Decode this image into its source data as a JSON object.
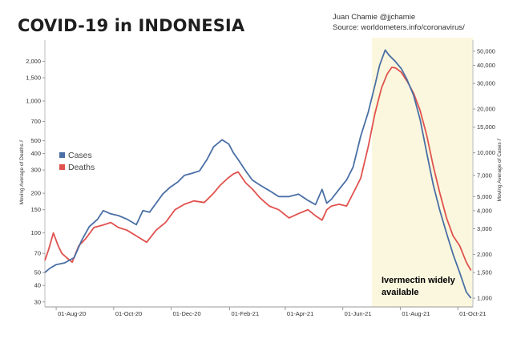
{
  "header": {
    "title": "COVID-19 in INDONESIA",
    "author": "Juan Chamie @jjchamie",
    "source": "Source: worldometers.info/coronavirus/"
  },
  "chart_data": {
    "type": "line",
    "title": "COVID-19 in INDONESIA",
    "ylabel_left": "Moving Average of Deaths",
    "ylabel_right": "Moving Average of Cases",
    "y_left_scale": "log",
    "y_right_scale": "log",
    "y_left_ticks": [
      30,
      40,
      50,
      70,
      100,
      150,
      200,
      300,
      400,
      500,
      700,
      1000,
      1500,
      2000
    ],
    "y_left_tick_labels": [
      "30",
      "40",
      "50",
      "70",
      "100",
      "150",
      "200",
      "300",
      "400",
      "500",
      "700",
      "1,000",
      "1,500",
      "2,000"
    ],
    "y_right_ticks": [
      1000,
      1500,
      2000,
      3000,
      4000,
      5000,
      7000,
      10000,
      15000,
      20000,
      30000,
      40000,
      50000
    ],
    "y_right_tick_labels": [
      "1,000",
      "1,500",
      "2,000",
      "3,000",
      "4,000",
      "5,000",
      "7,000",
      "10,000",
      "15,000",
      "20,000",
      "30,000",
      "40,000",
      "50,000"
    ],
    "x_tick_labels": [
      "01-Aug-20",
      "01-Oct-20",
      "01-Dec-20",
      "01-Feb-21",
      "01-Apr-21",
      "01-Jun-21",
      "01-Aug-21",
      "01-Oct-21"
    ],
    "x_tick_dates": [
      "2020-08-01",
      "2020-10-01",
      "2020-12-01",
      "2021-02-01",
      "2021-04-01",
      "2021-06-01",
      "2021-08-01",
      "2021-10-01"
    ],
    "x_range": [
      "2020-07-20",
      "2021-10-17"
    ],
    "legend": [
      "Cases",
      "Deaths"
    ],
    "legend_position": "left",
    "colors": {
      "cases": "#4a6fa5",
      "deaths": "#e0524e",
      "highlight": "#fbf7de"
    },
    "highlight": {
      "start": "2021-07-02",
      "end": "2021-10-17",
      "label_line1": "Ivermectin widely",
      "label_line2": "available"
    },
    "series": [
      {
        "name": "Cases",
        "axis": "right",
        "x": [
          "2020-07-20",
          "2020-07-25",
          "2020-08-01",
          "2020-08-10",
          "2020-08-20",
          "2020-08-28",
          "2020-09-05",
          "2020-09-14",
          "2020-09-20",
          "2020-09-28",
          "2020-10-06",
          "2020-10-15",
          "2020-10-25",
          "2020-11-01",
          "2020-11-08",
          "2020-11-15",
          "2020-11-22",
          "2020-11-30",
          "2020-12-08",
          "2020-12-15",
          "2020-12-22",
          "2020-12-31",
          "2021-01-08",
          "2021-01-15",
          "2021-01-24",
          "2021-01-31",
          "2021-02-05",
          "2021-02-10",
          "2021-02-18",
          "2021-02-25",
          "2021-03-05",
          "2021-03-15",
          "2021-03-25",
          "2021-04-05",
          "2021-04-15",
          "2021-04-25",
          "2021-05-03",
          "2021-05-10",
          "2021-05-15",
          "2021-05-20",
          "2021-05-28",
          "2021-06-05",
          "2021-06-12",
          "2021-06-20",
          "2021-06-28",
          "2021-07-05",
          "2021-07-10",
          "2021-07-16",
          "2021-07-20",
          "2021-07-26",
          "2021-08-02",
          "2021-08-08",
          "2021-08-15",
          "2021-08-22",
          "2021-08-29",
          "2021-09-05",
          "2021-09-12",
          "2021-09-19",
          "2021-09-26",
          "2021-10-03",
          "2021-10-10",
          "2021-10-15"
        ],
        "values": [
          1500,
          1600,
          1700,
          1750,
          1900,
          2500,
          3100,
          3500,
          4000,
          3800,
          3700,
          3500,
          3200,
          4000,
          3900,
          4500,
          5200,
          5800,
          6300,
          7000,
          7200,
          7500,
          9000,
          11000,
          12300,
          11500,
          10000,
          9000,
          7500,
          6500,
          6000,
          5500,
          5000,
          5000,
          5200,
          4700,
          4400,
          5600,
          4500,
          4800,
          5600,
          6500,
          8000,
          13000,
          19000,
          29000,
          40000,
          51000,
          47000,
          43000,
          38000,
          32000,
          25000,
          17000,
          10000,
          6000,
          4000,
          2800,
          2000,
          1500,
          1100,
          1000
        ]
      },
      {
        "name": "Deaths",
        "axis": "left",
        "x": [
          "2020-07-20",
          "2020-07-24",
          "2020-07-29",
          "2020-08-03",
          "2020-08-07",
          "2020-08-12",
          "2020-08-18",
          "2020-08-25",
          "2020-09-01",
          "2020-09-10",
          "2020-09-20",
          "2020-09-28",
          "2020-10-06",
          "2020-10-15",
          "2020-10-25",
          "2020-11-05",
          "2020-11-15",
          "2020-11-25",
          "2020-12-05",
          "2020-12-15",
          "2020-12-25",
          "2021-01-05",
          "2021-01-15",
          "2021-01-22",
          "2021-01-30",
          "2021-02-05",
          "2021-02-10",
          "2021-02-18",
          "2021-02-25",
          "2021-03-05",
          "2021-03-15",
          "2021-03-25",
          "2021-04-05",
          "2021-04-15",
          "2021-04-25",
          "2021-05-03",
          "2021-05-10",
          "2021-05-15",
          "2021-05-20",
          "2021-05-28",
          "2021-06-05",
          "2021-06-12",
          "2021-06-20",
          "2021-06-28",
          "2021-07-05",
          "2021-07-12",
          "2021-07-18",
          "2021-07-23",
          "2021-07-27",
          "2021-08-02",
          "2021-08-08",
          "2021-08-15",
          "2021-08-22",
          "2021-08-29",
          "2021-09-05",
          "2021-09-12",
          "2021-09-19",
          "2021-09-26",
          "2021-10-03",
          "2021-10-10",
          "2021-10-15"
        ],
        "values": [
          62,
          75,
          100,
          80,
          70,
          65,
          60,
          80,
          90,
          110,
          115,
          120,
          110,
          105,
          95,
          85,
          105,
          120,
          150,
          165,
          175,
          170,
          200,
          230,
          260,
          280,
          290,
          240,
          215,
          185,
          160,
          150,
          130,
          140,
          150,
          135,
          125,
          150,
          160,
          165,
          160,
          200,
          260,
          450,
          800,
          1250,
          1600,
          1800,
          1780,
          1650,
          1420,
          1150,
          850,
          550,
          320,
          200,
          130,
          95,
          80,
          60,
          52
        ]
      }
    ]
  }
}
